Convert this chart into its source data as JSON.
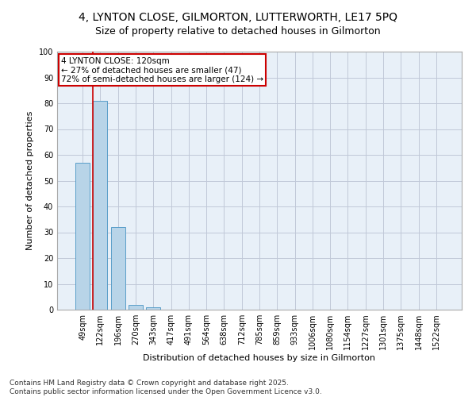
{
  "title_line1": "4, LYNTON CLOSE, GILMORTON, LUTTERWORTH, LE17 5PQ",
  "title_line2": "Size of property relative to detached houses in Gilmorton",
  "xlabel": "Distribution of detached houses by size in Gilmorton",
  "ylabel": "Number of detached properties",
  "categories": [
    "49sqm",
    "122sqm",
    "196sqm",
    "270sqm",
    "343sqm",
    "417sqm",
    "491sqm",
    "564sqm",
    "638sqm",
    "712sqm",
    "785sqm",
    "859sqm",
    "933sqm",
    "1006sqm",
    "1080sqm",
    "1154sqm",
    "1227sqm",
    "1301sqm",
    "1375sqm",
    "1448sqm",
    "1522sqm"
  ],
  "values": [
    57,
    81,
    32,
    2,
    1,
    0,
    0,
    0,
    0,
    0,
    0,
    0,
    0,
    0,
    0,
    0,
    0,
    0,
    0,
    0,
    0
  ],
  "bar_color": "#b8d4e8",
  "bar_edge_color": "#5a9ec9",
  "annotation_text_line1": "4 LYNTON CLOSE: 120sqm",
  "annotation_text_line2": "← 27% of detached houses are smaller (47)",
  "annotation_text_line3": "72% of semi-detached houses are larger (124) →",
  "annotation_box_color": "#cc0000",
  "background_color": "#e8f0f8",
  "grid_color": "#c0c8d8",
  "ylim": [
    0,
    100
  ],
  "yticks": [
    0,
    10,
    20,
    30,
    40,
    50,
    60,
    70,
    80,
    90,
    100
  ],
  "footer": "Contains HM Land Registry data © Crown copyright and database right 2025.\nContains public sector information licensed under the Open Government Licence v3.0.",
  "title_fontsize": 10,
  "subtitle_fontsize": 9,
  "annotation_fontsize": 7.5,
  "footer_fontsize": 6.5,
  "axis_label_fontsize": 8,
  "tick_fontsize": 7
}
